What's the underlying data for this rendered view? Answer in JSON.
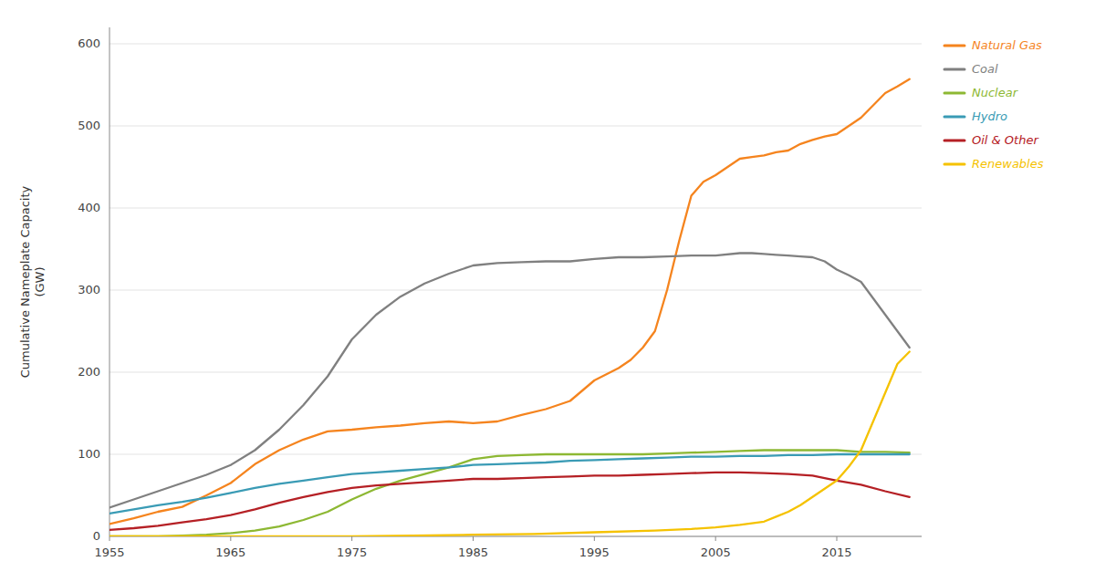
{
  "chart_data": {
    "type": "line",
    "y_label": "Cumulative Nameplate Capacity\n(GW)",
    "xlim": [
      1955,
      2022
    ],
    "ylim": [
      0,
      620
    ],
    "xticks": [
      1955,
      1965,
      1975,
      1985,
      1995,
      2005,
      2015
    ],
    "yticks": [
      0,
      100,
      200,
      300,
      400,
      500,
      600
    ],
    "grid": true,
    "legend": "right",
    "series": [
      {
        "name": "Natural Gas",
        "color": "#F5841E",
        "x": [
          1955,
          1957,
          1959,
          1961,
          1963,
          1965,
          1967,
          1969,
          1971,
          1973,
          1975,
          1977,
          1979,
          1981,
          1983,
          1985,
          1987,
          1989,
          1991,
          1993,
          1995,
          1997,
          1998,
          1999,
          2000,
          2001,
          2002,
          2003,
          2004,
          2005,
          2006,
          2007,
          2008,
          2009,
          2010,
          2011,
          2012,
          2013,
          2014,
          2015,
          2016,
          2017,
          2018,
          2019,
          2020,
          2021
        ],
        "values": [
          15,
          22,
          30,
          36,
          50,
          65,
          88,
          105,
          118,
          128,
          130,
          133,
          135,
          138,
          140,
          138,
          140,
          148,
          155,
          165,
          190,
          205,
          215,
          230,
          250,
          300,
          360,
          415,
          432,
          440,
          450,
          460,
          462,
          464,
          468,
          470,
          478,
          483,
          487,
          490,
          500,
          510,
          525,
          540,
          548,
          557
        ]
      },
      {
        "name": "Coal",
        "color": "#808080",
        "x": [
          1955,
          1957,
          1959,
          1961,
          1963,
          1965,
          1967,
          1969,
          1971,
          1973,
          1975,
          1977,
          1979,
          1981,
          1983,
          1985,
          1987,
          1989,
          1991,
          1993,
          1995,
          1997,
          1999,
          2001,
          2003,
          2005,
          2007,
          2008,
          2009,
          2010,
          2011,
          2012,
          2013,
          2014,
          2015,
          2016,
          2017,
          2018,
          2019,
          2020,
          2021
        ],
        "values": [
          35,
          45,
          55,
          65,
          75,
          87,
          105,
          130,
          160,
          195,
          240,
          270,
          292,
          308,
          320,
          330,
          333,
          334,
          335,
          335,
          338,
          340,
          340,
          341,
          342,
          342,
          345,
          345,
          344,
          343,
          342,
          341,
          340,
          335,
          325,
          318,
          310,
          290,
          270,
          250,
          230
        ]
      },
      {
        "name": "Nuclear",
        "color": "#8DB833",
        "x": [
          1955,
          1957,
          1959,
          1961,
          1963,
          1965,
          1967,
          1969,
          1971,
          1973,
          1975,
          1977,
          1979,
          1981,
          1983,
          1985,
          1987,
          1989,
          1991,
          1993,
          1995,
          1997,
          1999,
          2001,
          2003,
          2005,
          2007,
          2009,
          2011,
          2013,
          2015,
          2017,
          2019,
          2021
        ],
        "values": [
          0,
          0,
          0,
          1,
          2,
          4,
          7,
          12,
          20,
          30,
          45,
          58,
          68,
          76,
          84,
          94,
          98,
          99,
          100,
          100,
          100,
          100,
          100,
          101,
          102,
          103,
          104,
          105,
          105,
          105,
          105,
          103,
          103,
          102
        ]
      },
      {
        "name": "Hydro",
        "color": "#3A9BB5",
        "x": [
          1955,
          1957,
          1959,
          1961,
          1963,
          1965,
          1967,
          1969,
          1971,
          1973,
          1975,
          1977,
          1979,
          1981,
          1983,
          1985,
          1987,
          1989,
          1991,
          1993,
          1995,
          1997,
          1999,
          2001,
          2003,
          2005,
          2007,
          2009,
          2011,
          2013,
          2015,
          2017,
          2019,
          2021
        ],
        "values": [
          28,
          33,
          38,
          42,
          47,
          53,
          59,
          64,
          68,
          72,
          76,
          78,
          80,
          82,
          84,
          87,
          88,
          89,
          90,
          92,
          93,
          94,
          95,
          96,
          97,
          97,
          98,
          98,
          99,
          99,
          100,
          100,
          100,
          100
        ]
      },
      {
        "name": "Oil & Other",
        "color": "#B52025",
        "x": [
          1955,
          1957,
          1959,
          1961,
          1963,
          1965,
          1967,
          1969,
          1971,
          1973,
          1975,
          1977,
          1979,
          1981,
          1983,
          1985,
          1987,
          1989,
          1991,
          1993,
          1995,
          1997,
          1999,
          2001,
          2003,
          2005,
          2007,
          2009,
          2011,
          2013,
          2015,
          2017,
          2019,
          2021
        ],
        "values": [
          8,
          10,
          13,
          17,
          21,
          26,
          33,
          41,
          48,
          54,
          59,
          62,
          64,
          66,
          68,
          70,
          70,
          71,
          72,
          73,
          74,
          74,
          75,
          76,
          77,
          78,
          78,
          77,
          76,
          74,
          68,
          63,
          55,
          48
        ]
      },
      {
        "name": "Renewables",
        "color": "#F5C200",
        "x": [
          1955,
          1960,
          1965,
          1970,
          1975,
          1980,
          1985,
          1990,
          1995,
          2000,
          2003,
          2005,
          2007,
          2009,
          2010,
          2011,
          2012,
          2013,
          2014,
          2015,
          2016,
          2017,
          2018,
          2019,
          2020,
          2021
        ],
        "values": [
          0,
          0,
          0,
          0,
          0,
          1,
          2,
          3,
          5,
          7,
          9,
          11,
          14,
          18,
          24,
          30,
          38,
          48,
          58,
          68,
          85,
          105,
          140,
          175,
          210,
          225
        ]
      }
    ]
  }
}
